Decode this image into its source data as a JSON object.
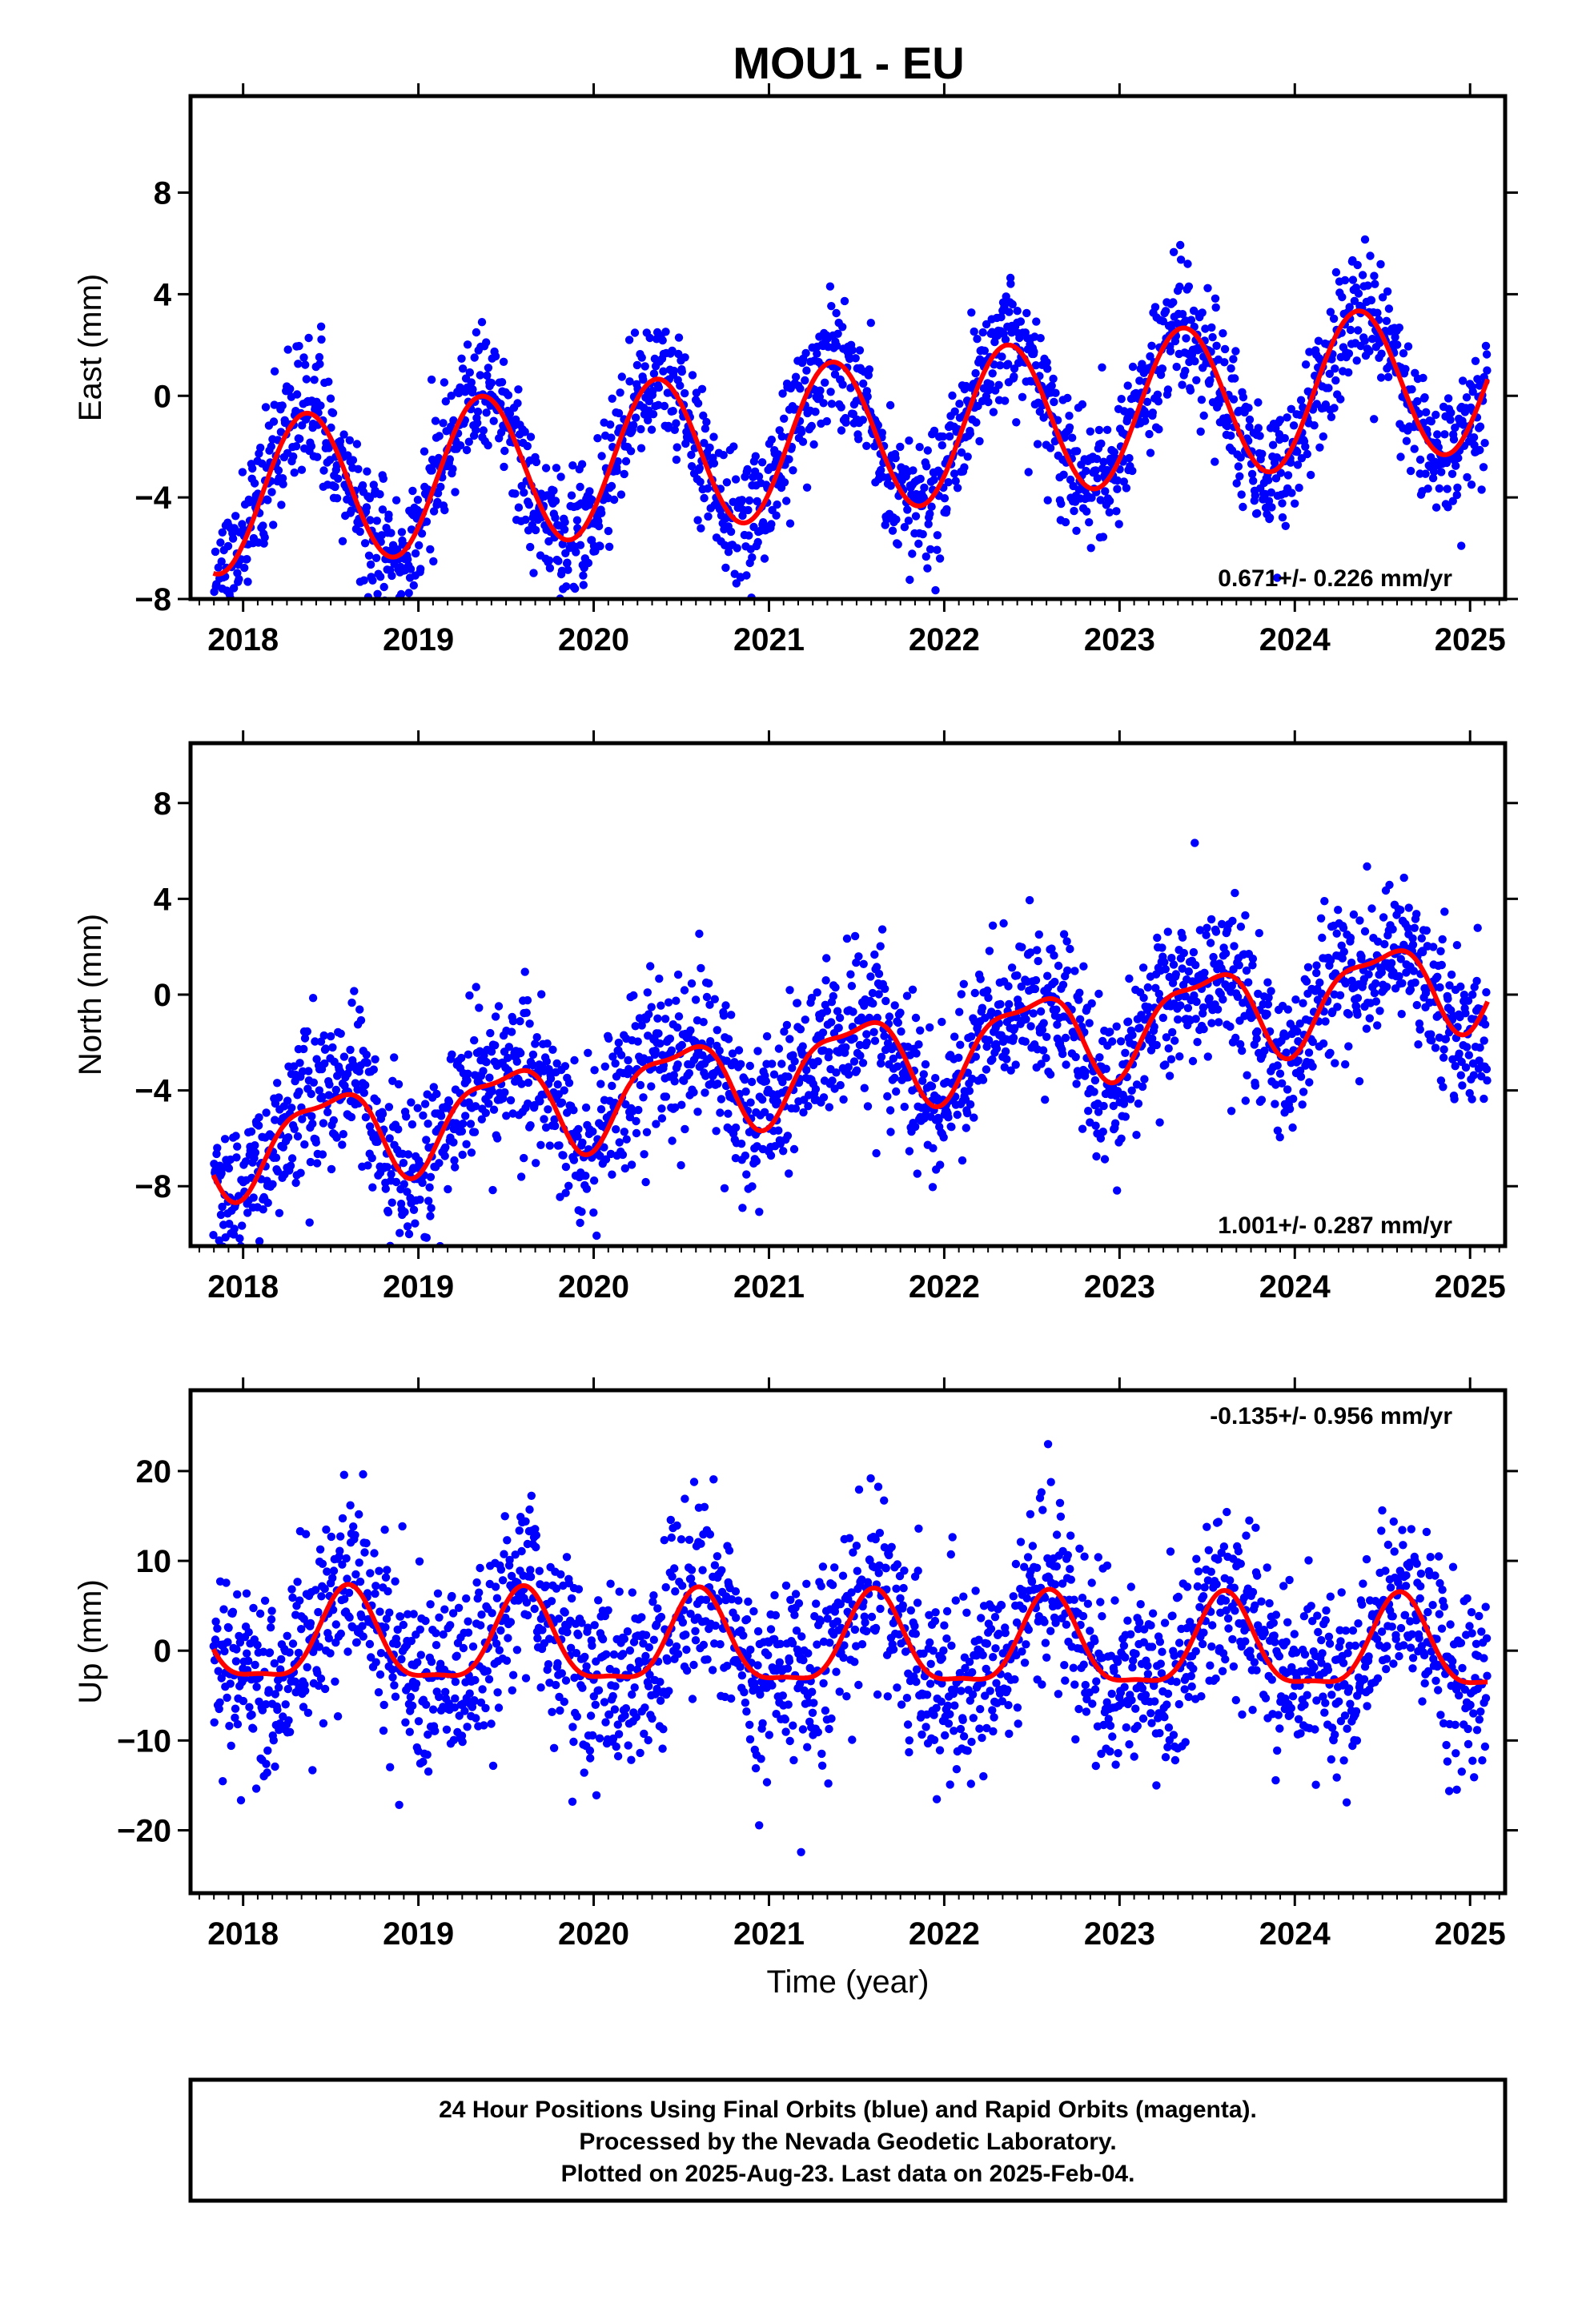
{
  "title": "MOU1 - EU",
  "colors": {
    "final_orbits": "#0000ff",
    "model": "#ff0000",
    "frame": "#000000"
  },
  "footer": {
    "line1": "24 Hour Positions Using Final Orbits (blue) and Rapid Orbits (magenta).",
    "line2": "Processed by the Nevada Geodetic Laboratory.",
    "line3": "Plotted on 2025-Aug-23. Last data on 2025-Feb-04."
  },
  "chart_data": [
    {
      "type": "scatter",
      "component": "east",
      "ylabel": "East (mm)",
      "xlabel": "",
      "xlim": [
        2017.7,
        2025.2
      ],
      "ylim": [
        -8,
        11.8
      ],
      "xticks": [
        2018,
        2019,
        2020,
        2021,
        2022,
        2023,
        2024,
        2025
      ],
      "yticks": [
        -8,
        -4,
        0,
        4,
        8
      ],
      "rate_label": "0.671+/- 0.226 mm/yr",
      "model": {
        "rate": 0.671,
        "offset_mm": -1.6,
        "annual_amplitude_mm": 3.0,
        "peak_phase_yr": 0.36,
        "semiannual_amplitude_mm": 0.0,
        "semiannual_phase_yr": 0.0
      },
      "scatter": {
        "sigma_mm": 1.3,
        "count": 2100,
        "seed": 11
      },
      "series": [
        {
          "name": "Final Orbits",
          "x_start": 2017.83,
          "x_end": 2025.1
        },
        {
          "name": "Model",
          "x_start": 2017.83,
          "x_end": 2025.1
        }
      ]
    },
    {
      "type": "scatter",
      "component": "north",
      "ylabel": "North (mm)",
      "xlabel": "",
      "xlim": [
        2017.7,
        2025.2
      ],
      "ylim": [
        -10.5,
        10.5
      ],
      "xticks": [
        2018,
        2019,
        2020,
        2021,
        2022,
        2023,
        2024,
        2025
      ],
      "yticks": [
        -8,
        -4,
        0,
        4,
        8
      ],
      "rate_label": "1.001+/- 0.287 mm/yr",
      "model": {
        "rate": 1.001,
        "offset_mm": -2.8,
        "annual_amplitude_mm": 1.8,
        "peak_phase_yr": 0.48,
        "semiannual_amplitude_mm": 0.6,
        "semiannual_phase_yr": 0.2
      },
      "scatter": {
        "sigma_mm": 1.6,
        "count": 2100,
        "seed": 23
      },
      "series": [
        {
          "name": "Final Orbits",
          "x_start": 2017.83,
          "x_end": 2025.1
        },
        {
          "name": "Model",
          "x_start": 2017.83,
          "x_end": 2025.1
        }
      ]
    },
    {
      "type": "scatter",
      "component": "up",
      "ylabel": "Up (mm)",
      "xlabel": "Time (year)",
      "xlim": [
        2017.7,
        2025.2
      ],
      "ylim": [
        -27,
        29
      ],
      "xticks": [
        2018,
        2019,
        2020,
        2021,
        2022,
        2023,
        2024,
        2025
      ],
      "yticks": [
        -20,
        -10,
        0,
        10,
        20
      ],
      "rate_label": "-0.135+/- 0.956 mm/yr",
      "model": {
        "rate": -0.135,
        "offset_mm": 0.5,
        "annual_amplitude_mm": 5.0,
        "peak_phase_yr": 0.6,
        "semiannual_amplitude_mm": 1.5,
        "semiannual_phase_yr": 0.1
      },
      "scatter": {
        "sigma_mm": 5.2,
        "count": 2100,
        "seed": 37
      },
      "series": [
        {
          "name": "Final Orbits",
          "x_start": 2017.83,
          "x_end": 2025.1
        },
        {
          "name": "Model",
          "x_start": 2017.83,
          "x_end": 2025.1
        }
      ]
    }
  ]
}
